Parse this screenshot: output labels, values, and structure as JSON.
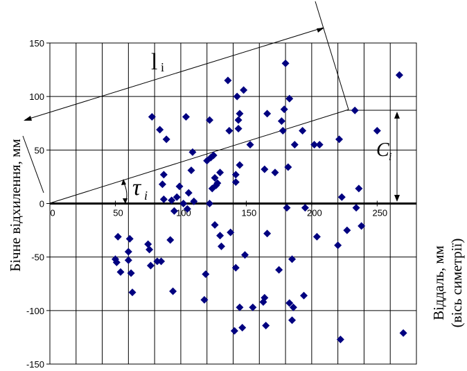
{
  "chart_data": {
    "type": "scatter",
    "title": "",
    "ylabel": "Бічне відхилення, мм",
    "xlabel_line1": "Віддаль, мм",
    "xlabel_line2": "(вісь симетрії)",
    "xlim": [
      0,
      280
    ],
    "ylim": [
      -150,
      150
    ],
    "x_ticks": [
      0,
      50,
      100,
      150,
      200,
      250
    ],
    "x_tick_labels": [
      "0",
      "50",
      "100",
      "150",
      "200",
      "250"
    ],
    "y_ticks": [
      -150,
      -100,
      -50,
      0,
      50,
      100,
      150
    ],
    "y_tick_labels": [
      "-150",
      "-100",
      "-50",
      "0",
      "50",
      "100",
      "150"
    ],
    "grid": true,
    "marker_color": "#000080",
    "annotations": {
      "l_label": "l",
      "l_sub": "i",
      "tau_label": "τ",
      "tau_sub": "i",
      "c_label": "C",
      "c_sub": "i"
    },
    "points": [
      [
        50,
        -52
      ],
      [
        51,
        -55
      ],
      [
        52,
        -31
      ],
      [
        54,
        -64
      ],
      [
        60,
        -53
      ],
      [
        60,
        -45
      ],
      [
        61,
        -33
      ],
      [
        62,
        -65
      ],
      [
        63,
        -83
      ],
      [
        75,
        -38
      ],
      [
        76,
        -43
      ],
      [
        77,
        -58
      ],
      [
        78,
        81
      ],
      [
        82,
        -54
      ],
      [
        84,
        69
      ],
      [
        85,
        -54
      ],
      [
        86,
        18
      ],
      [
        87,
        27
      ],
      [
        87,
        4
      ],
      [
        89,
        60
      ],
      [
        92,
        -34
      ],
      [
        93,
        3
      ],
      [
        94,
        -82
      ],
      [
        95,
        -7
      ],
      [
        97,
        6
      ],
      [
        99,
        16
      ],
      [
        102,
        0
      ],
      [
        104,
        81
      ],
      [
        105,
        -5
      ],
      [
        106,
        10
      ],
      [
        108,
        31
      ],
      [
        109,
        48
      ],
      [
        110,
        2
      ],
      [
        118,
        -90
      ],
      [
        119,
        -66
      ],
      [
        120,
        40
      ],
      [
        122,
        78
      ],
      [
        122,
        0
      ],
      [
        123,
        43
      ],
      [
        124,
        14
      ],
      [
        125,
        45
      ],
      [
        126,
        -20
      ],
      [
        126,
        24
      ],
      [
        127,
        17
      ],
      [
        128,
        19
      ],
      [
        130,
        -30
      ],
      [
        130,
        29
      ],
      [
        131,
        -40
      ],
      [
        136,
        115
      ],
      [
        137,
        68
      ],
      [
        138,
        -27
      ],
      [
        141,
        -119
      ],
      [
        142,
        20
      ],
      [
        142,
        27
      ],
      [
        142,
        -60
      ],
      [
        143,
        100
      ],
      [
        144,
        70
      ],
      [
        144,
        78
      ],
      [
        145,
        84
      ],
      [
        145,
        36
      ],
      [
        145,
        -97
      ],
      [
        147,
        -116
      ],
      [
        148,
        106
      ],
      [
        149,
        -48
      ],
      [
        153,
        55
      ],
      [
        155,
        -97
      ],
      [
        163,
        -92
      ],
      [
        164,
        -88
      ],
      [
        164,
        32
      ],
      [
        165,
        -114
      ],
      [
        166,
        84
      ],
      [
        166,
        -28
      ],
      [
        172,
        29
      ],
      [
        175,
        -62
      ],
      [
        177,
        77
      ],
      [
        178,
        68
      ],
      [
        179,
        88
      ],
      [
        180,
        131
      ],
      [
        181,
        -4
      ],
      [
        182,
        34
      ],
      [
        183,
        98
      ],
      [
        183,
        -93
      ],
      [
        185,
        -109
      ],
      [
        185,
        -52
      ],
      [
        186,
        -97
      ],
      [
        187,
        55
      ],
      [
        193,
        68
      ],
      [
        194,
        -86
      ],
      [
        195,
        -4
      ],
      [
        202,
        55
      ],
      [
        204,
        -31
      ],
      [
        206,
        55
      ],
      [
        220,
        -39
      ],
      [
        221,
        60
      ],
      [
        222,
        -127
      ],
      [
        223,
        6
      ],
      [
        227,
        -25
      ],
      [
        233,
        87
      ],
      [
        234,
        -4
      ],
      [
        236,
        14
      ],
      [
        238,
        -21
      ],
      [
        250,
        68
      ],
      [
        267,
        120
      ],
      [
        270,
        -121
      ]
    ]
  }
}
